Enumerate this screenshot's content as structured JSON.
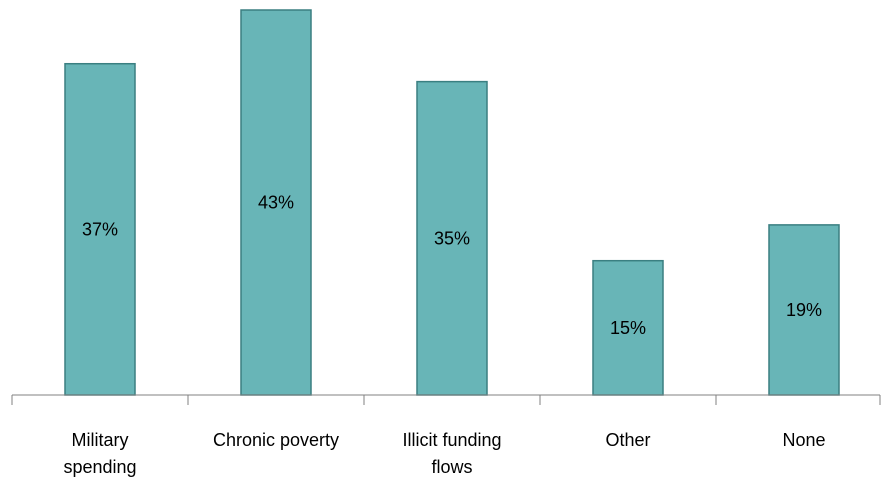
{
  "chart_data": {
    "type": "bar",
    "title": "",
    "xlabel": "",
    "ylabel": "",
    "categories": [
      [
        "Military",
        "spending"
      ],
      [
        "Chronic poverty"
      ],
      [
        "Illicit funding",
        "flows"
      ],
      [
        "Other"
      ],
      [
        "None"
      ]
    ],
    "values": [
      37,
      43,
      35,
      15,
      19
    ],
    "data_labels": [
      "37%",
      "43%",
      "35%",
      "15%",
      "19%"
    ],
    "ylim": [
      0,
      43
    ],
    "grid": false,
    "legend": "none",
    "colors": {
      "bar_fill": "#68b5b7",
      "bar_stroke": "#3a7f81",
      "axis": "#808080"
    }
  }
}
